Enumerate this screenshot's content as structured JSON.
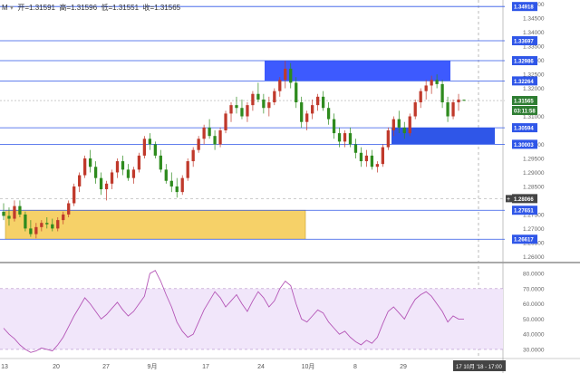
{
  "header": {
    "symbol_glyph": "M",
    "open_label": "开=",
    "open_value": "1.31591",
    "high_label": "高=",
    "high_value": "1.31596",
    "low_label": "低=",
    "low_value": "1.31551",
    "close_label": "收=",
    "close_value": "1.31565"
  },
  "colors": {
    "up": "#c0392b",
    "down": "#2e8b1e",
    "wick": "#555555",
    "supply_zone": "#3d5afe",
    "demand_zone_upper": "#2f56e8",
    "demand_zone_lower": "#f4c542",
    "rsi_line": "#b455b6",
    "rsi_band": "#f1e6fa",
    "level_line": "#2f56e8",
    "label_blue": "#2f56e8",
    "label_green": "#2e7d32",
    "label_dark": "#444444"
  },
  "price_axis": {
    "ticks": [
      "1.35000",
      "1.34500",
      "1.34000",
      "1.33500",
      "1.33000",
      "1.32500",
      "1.32000",
      "1.31000",
      "1.30000",
      "1.29500",
      "1.29000",
      "1.28500",
      "1.27500",
      "1.27000",
      "1.26500",
      "1.26000"
    ],
    "levels": [
      {
        "label": "1.34918",
        "value": 1.34918,
        "style": "blue"
      },
      {
        "label": "1.33697",
        "value": 1.33697,
        "style": "blue"
      },
      {
        "label": "1.32986",
        "value": 1.32986,
        "style": "blue"
      },
      {
        "label": "1.32264",
        "value": 1.32264,
        "style": "blue"
      },
      {
        "label": "1.31565",
        "value": 1.31565,
        "style": "green"
      },
      {
        "label": "03:11:58",
        "value": 1.3121,
        "style": "green"
      },
      {
        "label": "1.30594",
        "value": 1.30594,
        "style": "blue"
      },
      {
        "label": "1.30003",
        "value": 1.30003,
        "style": "blue"
      },
      {
        "label": "1.28066",
        "value": 1.28066,
        "style": "dark"
      },
      {
        "label": "1.27651",
        "value": 1.27651,
        "style": "blue"
      },
      {
        "label": "1.26617",
        "value": 1.26617,
        "style": "blue"
      }
    ]
  },
  "rsi_axis": {
    "ticks": [
      "80.0000",
      "70.0000",
      "60.0000",
      "50.0000",
      "40.0000",
      "30.0000"
    ]
  },
  "time_axis": {
    "ticks": [
      "13",
      "20",
      "27",
      "9月",
      "17",
      "24",
      "10月",
      "8",
      "29"
    ],
    "crosshair_label": "17 10月 '18 - 17:00"
  },
  "chart_data": {
    "type": "candlestick",
    "price_range": [
      1.2585,
      1.3515
    ],
    "rsi_range": [
      24,
      86
    ],
    "rsi_band": [
      30,
      70
    ],
    "supply_zone": {
      "top": 1.32986,
      "bottom": 1.32264
    },
    "demand_zone_upper": {
      "top": 1.30594,
      "bottom": 1.30003
    },
    "demand_zone_lower": {
      "top": 1.27651,
      "bottom": 1.26617
    },
    "candles": [
      [
        1.276,
        1.279,
        1.273,
        1.2745
      ],
      [
        1.2745,
        1.2775,
        1.271,
        1.2735
      ],
      [
        1.2735,
        1.28,
        1.2725,
        1.278
      ],
      [
        1.278,
        1.28,
        1.274,
        1.275
      ],
      [
        1.275,
        1.276,
        1.269,
        1.27
      ],
      [
        1.27,
        1.273,
        1.267,
        1.268
      ],
      [
        1.268,
        1.272,
        1.2665,
        1.2705
      ],
      [
        1.2705,
        1.273,
        1.269,
        1.272
      ],
      [
        1.272,
        1.274,
        1.27,
        1.2715
      ],
      [
        1.2715,
        1.2735,
        1.269,
        1.27
      ],
      [
        1.27,
        1.274,
        1.269,
        1.273
      ],
      [
        1.273,
        1.276,
        1.2715,
        1.275
      ],
      [
        1.275,
        1.28,
        1.274,
        1.279
      ],
      [
        1.279,
        1.286,
        1.278,
        1.285
      ],
      [
        1.285,
        1.29,
        1.283,
        1.289
      ],
      [
        1.289,
        1.296,
        1.288,
        1.295
      ],
      [
        1.295,
        1.298,
        1.29,
        1.292
      ],
      [
        1.292,
        1.294,
        1.286,
        1.288
      ],
      [
        1.288,
        1.29,
        1.282,
        1.284
      ],
      [
        1.284,
        1.287,
        1.28,
        1.286
      ],
      [
        1.286,
        1.291,
        1.284,
        1.29
      ],
      [
        1.29,
        1.295,
        1.288,
        1.294
      ],
      [
        1.294,
        1.296,
        1.289,
        1.291
      ],
      [
        1.291,
        1.293,
        1.287,
        1.288
      ],
      [
        1.288,
        1.292,
        1.286,
        1.291
      ],
      [
        1.291,
        1.297,
        1.29,
        1.296
      ],
      [
        1.296,
        1.303,
        1.295,
        1.302
      ],
      [
        1.302,
        1.304,
        1.298,
        1.3
      ],
      [
        1.3,
        1.301,
        1.295,
        1.296
      ],
      [
        1.296,
        1.298,
        1.29,
        1.291
      ],
      [
        1.291,
        1.293,
        1.286,
        1.287
      ],
      [
        1.287,
        1.29,
        1.283,
        1.285
      ],
      [
        1.285,
        1.288,
        1.281,
        1.283
      ],
      [
        1.283,
        1.289,
        1.282,
        1.288
      ],
      [
        1.288,
        1.295,
        1.287,
        1.294
      ],
      [
        1.294,
        1.299,
        1.292,
        1.298
      ],
      [
        1.298,
        1.303,
        1.297,
        1.302
      ],
      [
        1.302,
        1.307,
        1.3,
        1.306
      ],
      [
        1.306,
        1.309,
        1.302,
        1.303
      ],
      [
        1.303,
        1.305,
        1.298,
        1.3
      ],
      [
        1.3,
        1.306,
        1.299,
        1.305
      ],
      [
        1.305,
        1.312,
        1.304,
        1.311
      ],
      [
        1.311,
        1.315,
        1.308,
        1.314
      ],
      [
        1.314,
        1.317,
        1.311,
        1.313
      ],
      [
        1.313,
        1.316,
        1.309,
        1.31
      ],
      [
        1.31,
        1.315,
        1.308,
        1.314
      ],
      [
        1.314,
        1.319,
        1.312,
        1.318
      ],
      [
        1.318,
        1.322,
        1.315,
        1.316
      ],
      [
        1.316,
        1.318,
        1.311,
        1.313
      ],
      [
        1.313,
        1.317,
        1.31,
        1.315
      ],
      [
        1.315,
        1.32,
        1.314,
        1.319
      ],
      [
        1.319,
        1.324,
        1.317,
        1.323
      ],
      [
        1.323,
        1.3298,
        1.32,
        1.327
      ],
      [
        1.327,
        1.329,
        1.32,
        1.322
      ],
      [
        1.322,
        1.324,
        1.313,
        1.315
      ],
      [
        1.315,
        1.317,
        1.306,
        1.308
      ],
      [
        1.308,
        1.312,
        1.305,
        1.311
      ],
      [
        1.311,
        1.316,
        1.309,
        1.314
      ],
      [
        1.314,
        1.318,
        1.312,
        1.317
      ],
      [
        1.317,
        1.319,
        1.312,
        1.313
      ],
      [
        1.313,
        1.315,
        1.307,
        1.309
      ],
      [
        1.309,
        1.311,
        1.302,
        1.304
      ],
      [
        1.304,
        1.306,
        1.299,
        1.301
      ],
      [
        1.301,
        1.305,
        1.299,
        1.304
      ],
      [
        1.304,
        1.306,
        1.299,
        1.3
      ],
      [
        1.3,
        1.302,
        1.295,
        1.297
      ],
      [
        1.297,
        1.299,
        1.292,
        1.294
      ],
      [
        1.294,
        1.298,
        1.292,
        1.296
      ],
      [
        1.296,
        1.298,
        1.291,
        1.292
      ],
      [
        1.292,
        1.294,
        1.29,
        1.293
      ],
      [
        1.293,
        1.3,
        1.292,
        1.299
      ],
      [
        1.299,
        1.306,
        1.298,
        1.305
      ],
      [
        1.305,
        1.31,
        1.303,
        1.309
      ],
      [
        1.309,
        1.312,
        1.304,
        1.306
      ],
      [
        1.306,
        1.308,
        1.302,
        1.304
      ],
      [
        1.304,
        1.311,
        1.303,
        1.31
      ],
      [
        1.31,
        1.316,
        1.309,
        1.315
      ],
      [
        1.315,
        1.32,
        1.313,
        1.319
      ],
      [
        1.319,
        1.323,
        1.316,
        1.321
      ],
      [
        1.321,
        1.3245,
        1.318,
        1.323
      ],
      [
        1.323,
        1.325,
        1.32,
        1.3215
      ],
      [
        1.3215,
        1.323,
        1.313,
        1.315
      ],
      [
        1.315,
        1.317,
        1.308,
        1.31
      ],
      [
        1.31,
        1.316,
        1.309,
        1.315
      ],
      [
        1.315,
        1.318,
        1.312,
        1.316
      ],
      [
        1.3159,
        1.316,
        1.3155,
        1.3157
      ]
    ],
    "rsi": [
      44,
      40,
      37,
      33,
      30,
      28,
      29,
      31,
      30,
      29,
      33,
      38,
      45,
      52,
      58,
      64,
      60,
      55,
      50,
      53,
      57,
      61,
      56,
      52,
      55,
      60,
      65,
      80,
      82,
      75,
      66,
      58,
      48,
      42,
      38,
      40,
      48,
      56,
      62,
      68,
      64,
      58,
      62,
      66,
      60,
      55,
      62,
      68,
      64,
      58,
      62,
      70,
      75,
      72,
      60,
      50,
      48,
      52,
      56,
      54,
      48,
      44,
      40,
      42,
      38,
      35,
      33,
      36,
      34,
      38,
      47,
      55,
      58,
      54,
      50,
      57,
      63,
      66,
      68,
      65,
      60,
      55,
      48,
      52,
      50,
      50
    ]
  }
}
